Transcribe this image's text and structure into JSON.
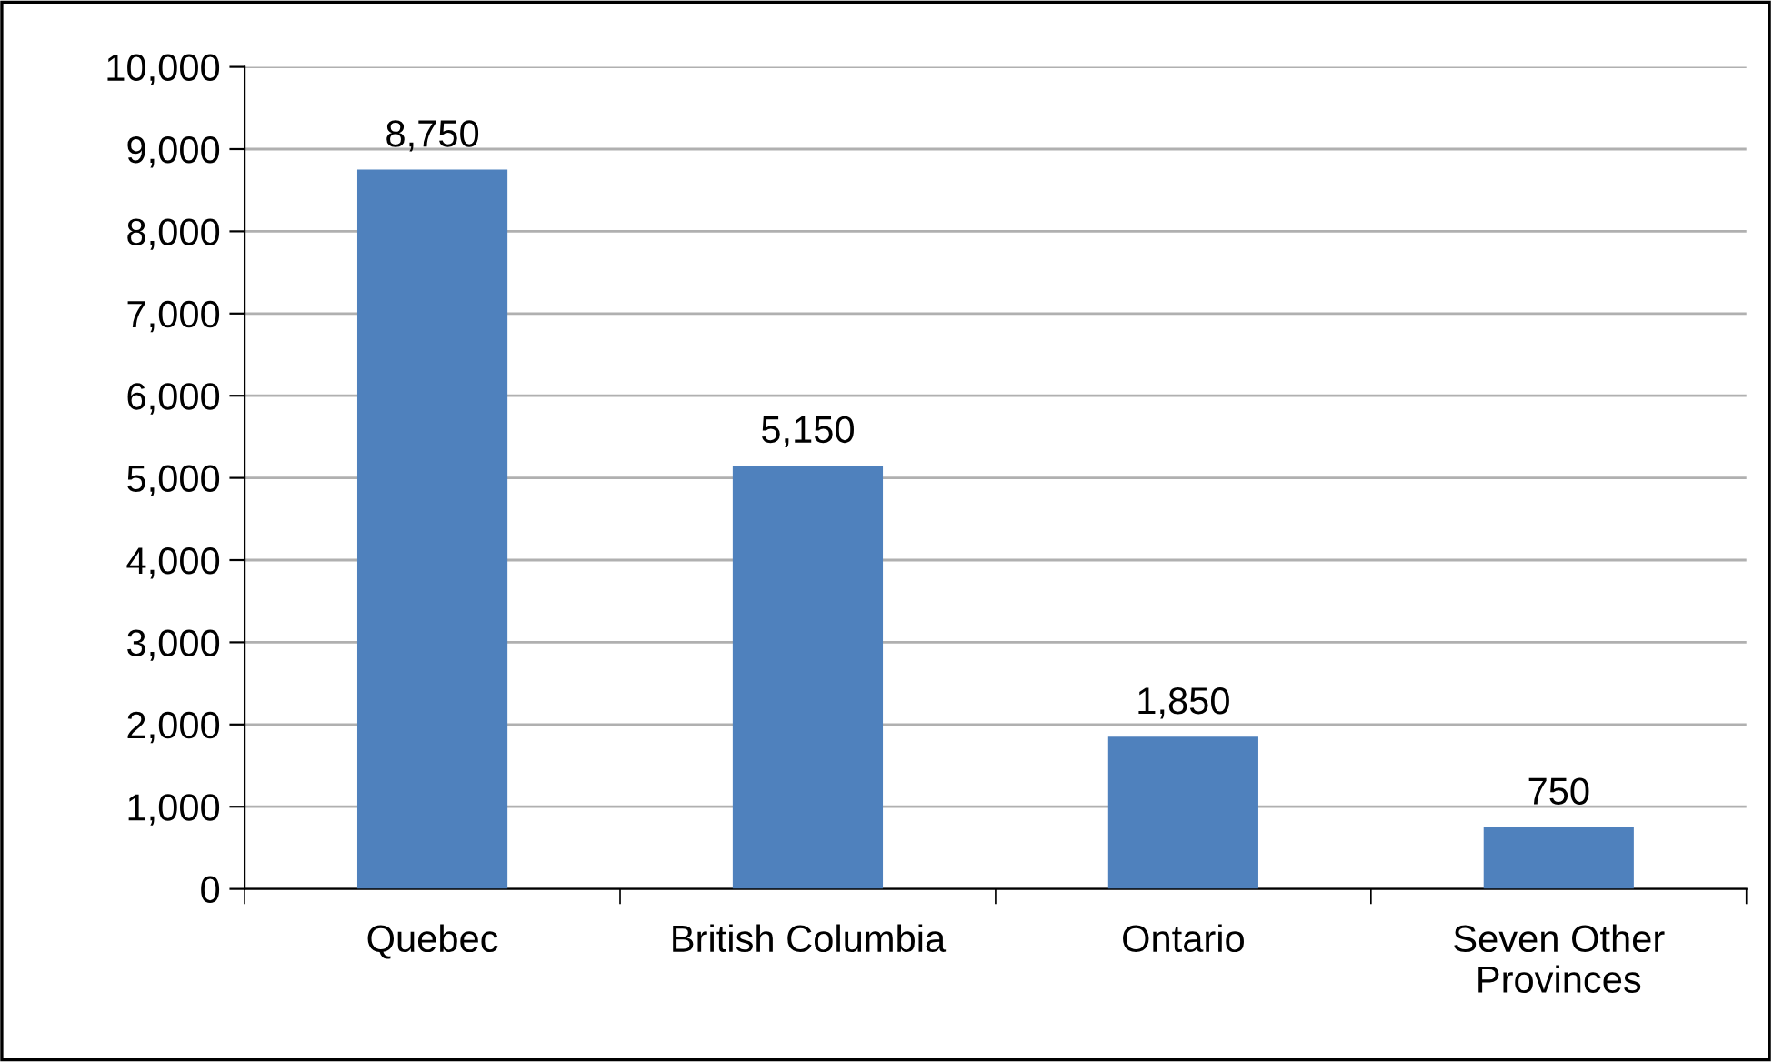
{
  "chart_data": {
    "type": "bar",
    "categories": [
      "Quebec",
      "British Columbia",
      "Ontario",
      "Seven Other\nProvinces"
    ],
    "values": [
      8750,
      5150,
      1850,
      750
    ],
    "color": "#4f81bd",
    "ylim": [
      0,
      10000
    ],
    "yticks": [
      {
        "value": 0,
        "label": "0"
      },
      {
        "value": 1000,
        "label": "1,000"
      },
      {
        "value": 2000,
        "label": "2,000"
      },
      {
        "value": 3000,
        "label": "3,000"
      },
      {
        "value": 4000,
        "label": "4,000"
      },
      {
        "value": 5000,
        "label": "5,000"
      },
      {
        "value": 6000,
        "label": "6,000"
      },
      {
        "value": 7000,
        "label": "7,000"
      },
      {
        "value": 8000,
        "label": "8,000"
      },
      {
        "value": 9000,
        "label": "9,000"
      },
      {
        "value": 10000,
        "label": "10,000"
      }
    ],
    "value_labels": [
      "8,750",
      "5,150",
      "1,850",
      "750"
    ],
    "grid": "y"
  }
}
